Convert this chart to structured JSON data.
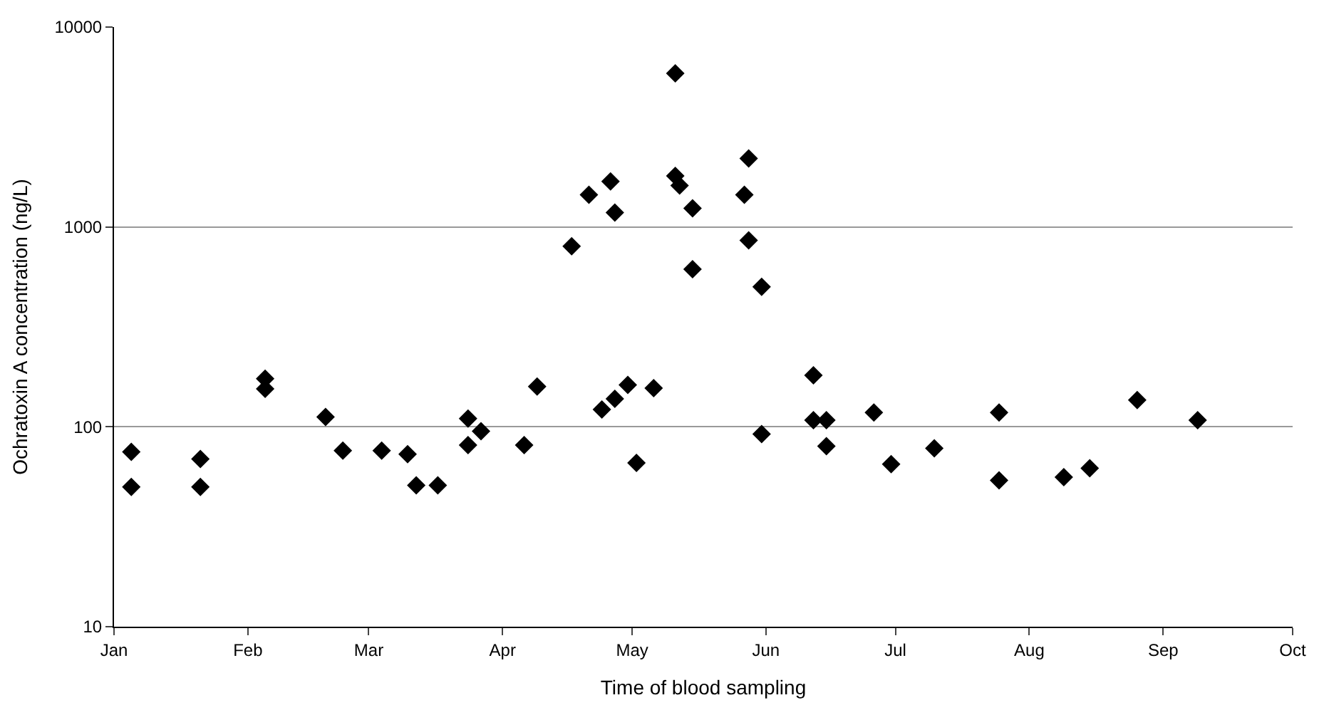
{
  "chart_data": {
    "type": "scatter",
    "xlabel": "Time of blood sampling",
    "ylabel": "Ochratoxin A concentration (ng/L)",
    "xlim": [
      "--01-01",
      "--10-01"
    ],
    "xticks": [
      {
        "value": "--01-01",
        "label": "Jan"
      },
      {
        "value": "--02-01",
        "label": "Feb"
      },
      {
        "value": "--03-01",
        "label": "Mar"
      },
      {
        "value": "--04-01",
        "label": "Apr"
      },
      {
        "value": "--05-01",
        "label": "May"
      },
      {
        "value": "--06-01",
        "label": "Jun"
      },
      {
        "value": "--07-01",
        "label": "Jul"
      },
      {
        "value": "--08-01",
        "label": "Aug"
      },
      {
        "value": "--09-01",
        "label": "Sep"
      },
      {
        "value": "--10-01",
        "label": "Oct"
      }
    ],
    "ylim": [
      10,
      10000
    ],
    "yticks": [
      10,
      100,
      1000,
      10000
    ],
    "log": "y",
    "grid": "y",
    "marker": "diamond",
    "series": [
      {
        "color": "#000000",
        "x": [
          "--01-05",
          "--01-05",
          "--01-21",
          "--01-21",
          "--02-05",
          "--02-05",
          "--02-19",
          "--02-23",
          "--03-04",
          "--03-10",
          "--03-12",
          "--03-17",
          "--03-24",
          "--03-27",
          "--03-24",
          "--04-06",
          "--04-09",
          "--04-17",
          "--04-24",
          "--04-27",
          "--04-30",
          "--05-02",
          "--05-06",
          "--04-21",
          "--04-27",
          "--04-26",
          "--05-11",
          "--05-11",
          "--05-12",
          "--05-15",
          "--05-15",
          "--05-27",
          "--05-28",
          "--05-28",
          "--05-31",
          "--05-31",
          "--06-12",
          "--06-12",
          "--06-15",
          "--06-15",
          "--06-26",
          "--06-30",
          "--07-10",
          "--07-25",
          "--07-25",
          "--08-09",
          "--08-15",
          "--08-26",
          "--09-09"
        ],
        "values": [
          75,
          50,
          69,
          50,
          174,
          155,
          112,
          76,
          76,
          73,
          51,
          51,
          110,
          95,
          81,
          81,
          159,
          800,
          122,
          138,
          162,
          66,
          156,
          1450,
          1180,
          1690,
          5870,
          1800,
          1610,
          1240,
          614,
          1450,
          2200,
          857,
          502,
          92,
          181,
          108,
          108,
          80,
          118,
          65,
          78,
          118,
          54,
          56,
          62,
          136,
          108
        ]
      }
    ]
  }
}
